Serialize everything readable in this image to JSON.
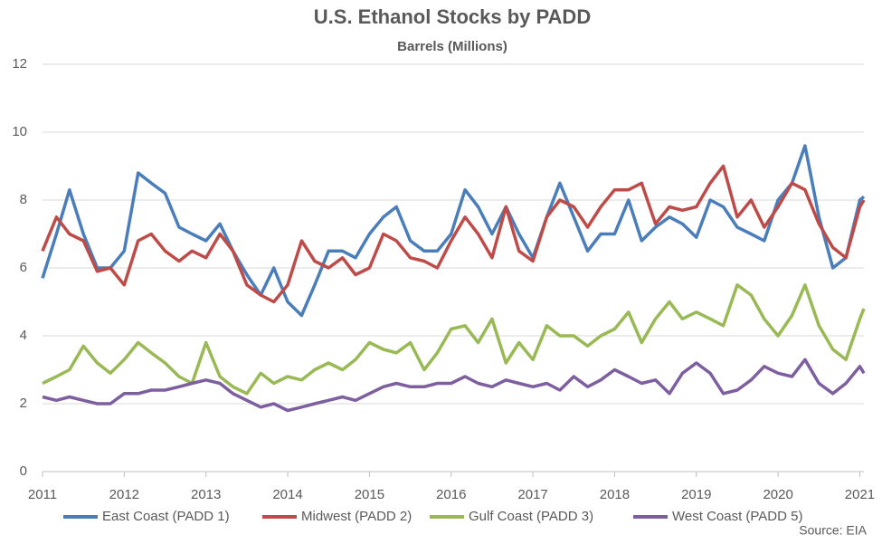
{
  "chart_data": {
    "type": "line",
    "title": "U.S. Ethanol Stocks by PADD",
    "subtitle": "Barrels (Millions)",
    "source": "Source: EIA",
    "x": [
      2011,
      2011.17,
      2011.33,
      2011.5,
      2011.67,
      2011.83,
      2012,
      2012.17,
      2012.33,
      2012.5,
      2012.67,
      2012.83,
      2013,
      2013.17,
      2013.33,
      2013.5,
      2013.67,
      2013.83,
      2014,
      2014.17,
      2014.33,
      2014.5,
      2014.67,
      2014.83,
      2015,
      2015.17,
      2015.33,
      2015.5,
      2015.67,
      2015.83,
      2016,
      2016.17,
      2016.33,
      2016.5,
      2016.67,
      2016.83,
      2017,
      2017.17,
      2017.33,
      2017.5,
      2017.67,
      2017.83,
      2018,
      2018.17,
      2018.33,
      2018.5,
      2018.67,
      2018.83,
      2019,
      2019.17,
      2019.33,
      2019.5,
      2019.67,
      2019.83,
      2020,
      2020.17,
      2020.33,
      2020.5,
      2020.67,
      2020.83,
      2021,
      2021.05
    ],
    "series": [
      {
        "name": "East Coast (PADD 1)",
        "color": "#4a7ebb",
        "values": [
          5.7,
          7.0,
          8.3,
          7.0,
          6.0,
          6.0,
          6.5,
          8.8,
          8.5,
          8.2,
          7.2,
          7.0,
          6.8,
          7.3,
          6.5,
          5.8,
          5.2,
          6.0,
          5.0,
          4.6,
          5.5,
          6.5,
          6.5,
          6.3,
          7.0,
          7.5,
          7.8,
          6.8,
          6.5,
          6.5,
          7.0,
          8.3,
          7.8,
          7.0,
          7.8,
          7.0,
          6.3,
          7.5,
          8.5,
          7.5,
          6.5,
          7.0,
          7.0,
          8.0,
          6.8,
          7.2,
          7.5,
          7.3,
          6.9,
          8.0,
          7.8,
          7.2,
          7.0,
          6.8,
          8.0,
          8.5,
          9.6,
          7.5,
          6.0,
          6.3,
          8.0,
          8.1
        ]
      },
      {
        "name": "Midwest (PADD 2)",
        "color": "#be4b48",
        "values": [
          6.5,
          7.5,
          7.0,
          6.8,
          5.9,
          6.0,
          5.5,
          6.8,
          7.0,
          6.5,
          6.2,
          6.5,
          6.3,
          7.0,
          6.5,
          5.5,
          5.2,
          5.0,
          5.5,
          6.8,
          6.2,
          6.0,
          6.3,
          5.8,
          6.0,
          7.0,
          6.8,
          6.3,
          6.2,
          6.0,
          6.8,
          7.5,
          7.0,
          6.3,
          7.8,
          6.5,
          6.2,
          7.5,
          8.0,
          7.8,
          7.2,
          7.8,
          8.3,
          8.3,
          8.5,
          7.3,
          7.8,
          7.7,
          7.8,
          8.5,
          9.0,
          7.5,
          8.0,
          7.2,
          7.8,
          8.5,
          8.3,
          7.3,
          6.6,
          6.3,
          7.8,
          8.0
        ]
      },
      {
        "name": "Gulf Coast (PADD 3)",
        "color": "#98b954",
        "values": [
          2.6,
          2.8,
          3.0,
          3.7,
          3.2,
          2.9,
          3.3,
          3.8,
          3.5,
          3.2,
          2.8,
          2.6,
          3.8,
          2.8,
          2.5,
          2.3,
          2.9,
          2.6,
          2.8,
          2.7,
          3.0,
          3.2,
          3.0,
          3.3,
          3.8,
          3.6,
          3.5,
          3.8,
          3.0,
          3.5,
          4.2,
          4.3,
          3.8,
          4.5,
          3.2,
          3.8,
          3.3,
          4.3,
          4.0,
          4.0,
          3.7,
          4.0,
          4.2,
          4.7,
          3.8,
          4.5,
          5.0,
          4.5,
          4.7,
          4.5,
          4.3,
          5.5,
          5.2,
          4.5,
          4.0,
          4.6,
          5.5,
          4.3,
          3.6,
          3.3,
          4.5,
          4.8
        ]
      },
      {
        "name": "West Coast (PADD 5)",
        "color": "#7d5fa0",
        "values": [
          2.2,
          2.1,
          2.2,
          2.1,
          2.0,
          2.0,
          2.3,
          2.3,
          2.4,
          2.4,
          2.5,
          2.6,
          2.7,
          2.6,
          2.3,
          2.1,
          1.9,
          2.0,
          1.8,
          1.9,
          2.0,
          2.1,
          2.2,
          2.1,
          2.3,
          2.5,
          2.6,
          2.5,
          2.5,
          2.6,
          2.6,
          2.8,
          2.6,
          2.5,
          2.7,
          2.6,
          2.5,
          2.6,
          2.4,
          2.8,
          2.5,
          2.7,
          3.0,
          2.8,
          2.6,
          2.7,
          2.3,
          2.9,
          3.2,
          2.9,
          2.3,
          2.4,
          2.7,
          3.1,
          2.9,
          2.8,
          3.3,
          2.6,
          2.3,
          2.6,
          3.1,
          2.9
        ]
      }
    ],
    "xlim": [
      2011,
      2021.05
    ],
    "xticks": [
      2011,
      2012,
      2013,
      2014,
      2015,
      2016,
      2017,
      2018,
      2019,
      2020,
      2021
    ],
    "ylim": [
      0,
      12
    ],
    "yticks": [
      0,
      2,
      4,
      6,
      8,
      10,
      12
    ],
    "grid": true,
    "legend": "bottom"
  }
}
